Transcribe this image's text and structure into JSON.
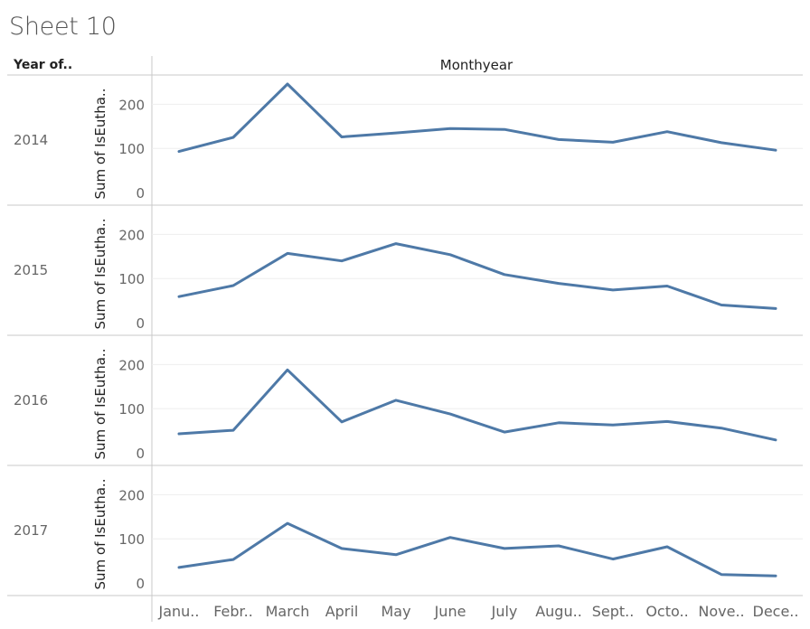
{
  "title": "Sheet 10",
  "row_header": "Year of..",
  "column_header": "Monthyear",
  "y_axis_label": "Sum of IsEutha..",
  "chart_data": {
    "type": "line",
    "title": "Sheet 10",
    "categories": [
      "Janu..",
      "Febr..",
      "March",
      "April",
      "May",
      "June",
      "July",
      "Augu..",
      "Sept..",
      "Octo..",
      "Nove..",
      "Dece.."
    ],
    "yticks": [
      0,
      100,
      200
    ],
    "ylim": [
      0,
      250
    ],
    "grid": true,
    "color": "#4e79a7",
    "panels": [
      {
        "year": "2014",
        "values": [
          93,
          125,
          246,
          126,
          135,
          145,
          143,
          120,
          114,
          138,
          113,
          96
        ]
      },
      {
        "year": "2015",
        "values": [
          59,
          84,
          157,
          140,
          179,
          154,
          109,
          89,
          74,
          83,
          40,
          32
        ]
      },
      {
        "year": "2016",
        "values": [
          43,
          51,
          188,
          70,
          119,
          88,
          47,
          68,
          63,
          71,
          56,
          29
        ]
      },
      {
        "year": "2017",
        "values": [
          35,
          53,
          135,
          78,
          64,
          103,
          78,
          84,
          54,
          82,
          19,
          16
        ]
      }
    ]
  }
}
